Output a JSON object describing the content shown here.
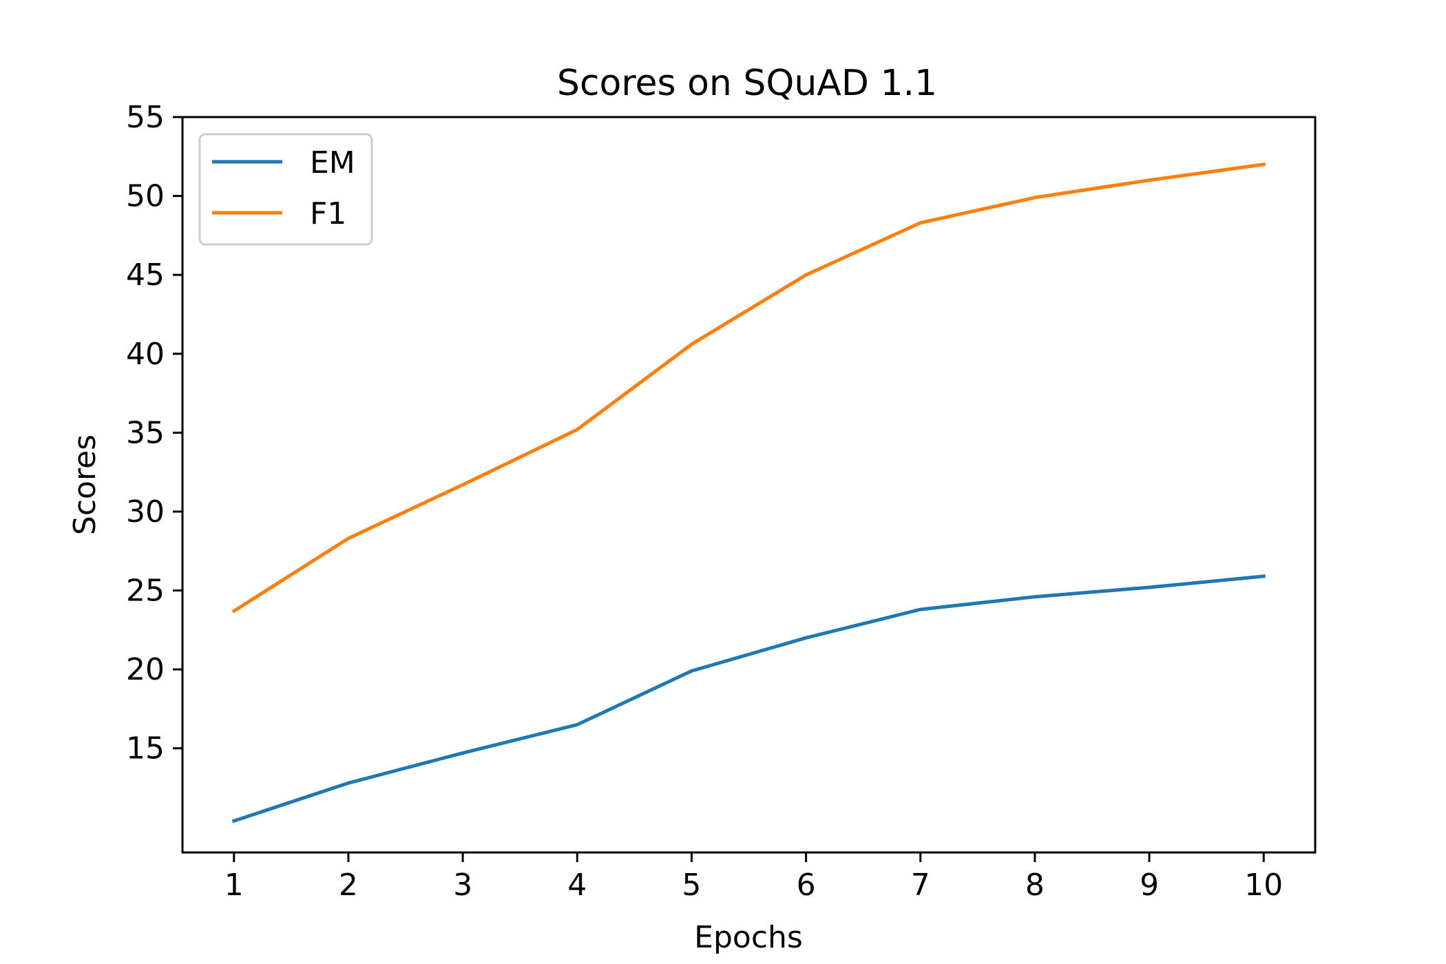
{
  "chart_data": {
    "type": "line",
    "title": "Scores on SQuAD 1.1",
    "xlabel": "Epochs",
    "ylabel": "Scores",
    "x": [
      1,
      2,
      3,
      4,
      5,
      6,
      7,
      8,
      9,
      10
    ],
    "xticks": [
      "1",
      "2",
      "3",
      "4",
      "5",
      "6",
      "7",
      "8",
      "9",
      "10"
    ],
    "yticks": [
      "15",
      "20",
      "25",
      "30",
      "35",
      "40",
      "45",
      "50",
      "55"
    ],
    "ylim": [
      8.4,
      55
    ],
    "xlim": [
      0.55,
      10.45
    ],
    "grid": false,
    "legend_position": "top-left",
    "series": [
      {
        "name": "EM",
        "color": "#1f77b4",
        "values": [
          10.4,
          12.8,
          14.7,
          16.5,
          19.9,
          22.0,
          23.8,
          24.6,
          25.2,
          25.9
        ]
      },
      {
        "name": "F1",
        "color": "#ff7f0e",
        "values": [
          23.7,
          28.3,
          31.7,
          35.2,
          40.6,
          45.0,
          48.3,
          49.9,
          51.0,
          52.0
        ]
      }
    ]
  }
}
